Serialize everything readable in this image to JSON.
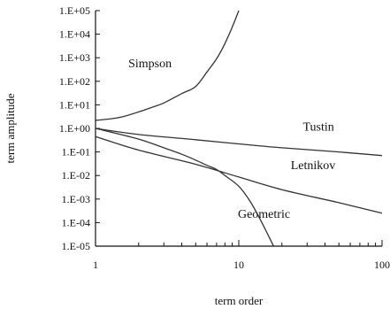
{
  "chart_data": {
    "type": "line",
    "title": "",
    "xlabel": "term order",
    "ylabel": "term amplitude",
    "xscale": "log",
    "yscale": "log",
    "xlim": [
      1,
      100
    ],
    "ylim": [
      1e-05,
      100000
    ],
    "grid": false,
    "x_ticks": [
      {
        "value": 1,
        "label": "1"
      },
      {
        "value": 10,
        "label": "10"
      },
      {
        "value": 100,
        "label": "100"
      }
    ],
    "y_ticks": [
      {
        "value": 100000,
        "label": "1.E+05"
      },
      {
        "value": 10000,
        "label": "1.E+04"
      },
      {
        "value": 1000,
        "label": "1.E+03"
      },
      {
        "value": 100,
        "label": "1.E+02"
      },
      {
        "value": 10,
        "label": "1.E+01"
      },
      {
        "value": 1,
        "label": "1.E+00"
      },
      {
        "value": 0.1,
        "label": "1.E-01"
      },
      {
        "value": 0.01,
        "label": "1.E-02"
      },
      {
        "value": 0.001,
        "label": "1.E-03"
      },
      {
        "value": 0.0001,
        "label": "1.E-04"
      },
      {
        "value": 1e-05,
        "label": "1.E-05"
      }
    ],
    "series": [
      {
        "name": "Simpson",
        "x": [
          1,
          1.3,
          1.6,
          2,
          2.5,
          3,
          4,
          5,
          6,
          7,
          8,
          9,
          10
        ],
        "y": [
          2.2,
          2.6,
          3.3,
          5,
          8,
          12,
          30,
          60,
          250,
          900,
          4000,
          20000,
          100000
        ],
        "label_at": [
          2.4,
          400
        ]
      },
      {
        "name": "Tustin",
        "x": [
          1,
          2,
          5,
          10,
          20,
          50,
          100
        ],
        "y": [
          1,
          0.55,
          0.33,
          0.22,
          0.15,
          0.1,
          0.07
        ],
        "label_at": [
          36,
          0.8
        ]
      },
      {
        "name": "Letnikov",
        "x": [
          1,
          2,
          5,
          10,
          20,
          50,
          100
        ],
        "y": [
          0.45,
          0.12,
          0.03,
          0.0086,
          0.0025,
          0.0007,
          0.00025
        ],
        "label_at": [
          33,
          0.019
        ]
      },
      {
        "name": "Geometric",
        "x": [
          1,
          2,
          3,
          4,
          5,
          6,
          7,
          8,
          10,
          12,
          14,
          16,
          17.5
        ],
        "y": [
          1,
          0.35,
          0.15,
          0.08,
          0.045,
          0.027,
          0.018,
          0.01,
          0.0035,
          0.0008,
          0.00015,
          3e-05,
          1e-05
        ],
        "label_at": [
          15,
          0.00016
        ]
      }
    ]
  }
}
